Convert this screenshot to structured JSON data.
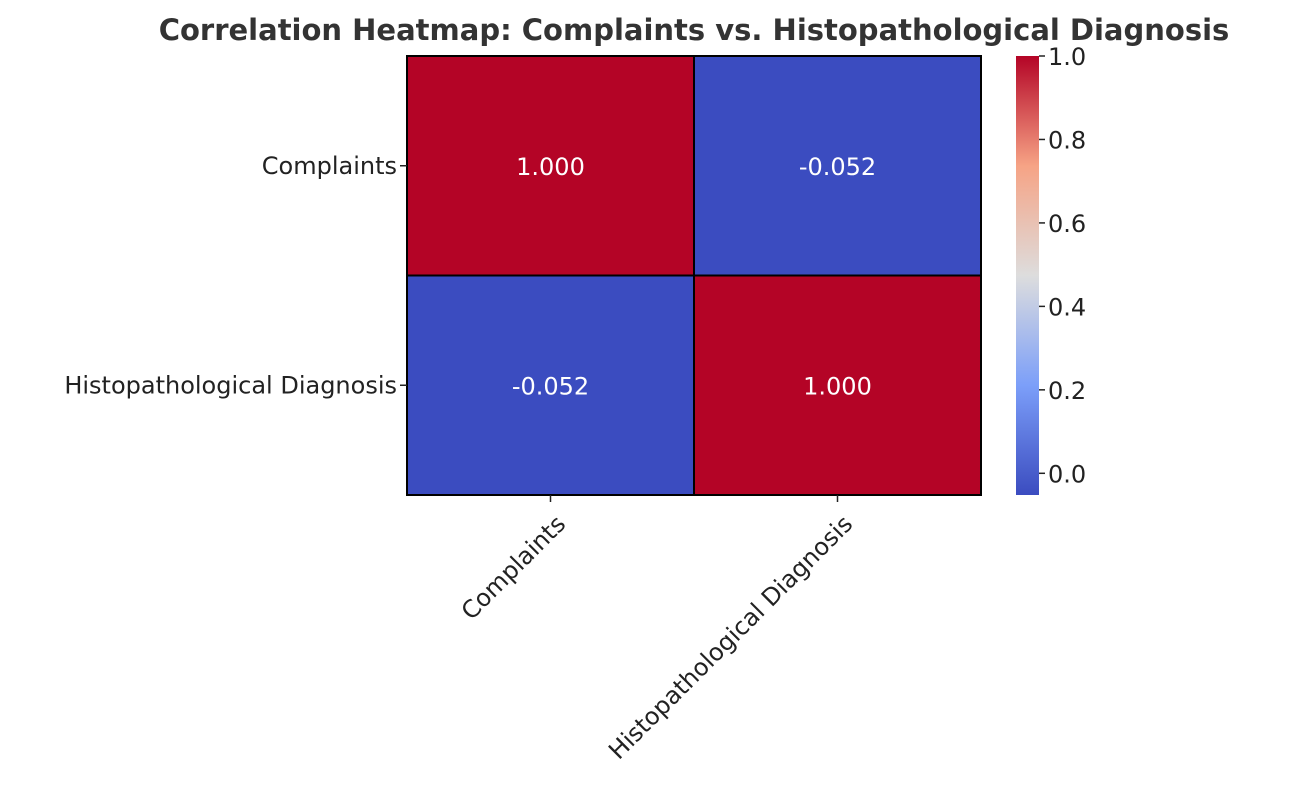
{
  "chart_data": {
    "type": "heatmap",
    "title": "Correlation Heatmap: Complaints vs. Histopathological Diagnosis",
    "rows": [
      "Complaints",
      "Histopathological Diagnosis"
    ],
    "columns": [
      "Complaints",
      "Histopathological Diagnosis"
    ],
    "values": [
      [
        1.0,
        -0.052
      ],
      [
        -0.052,
        1.0
      ]
    ],
    "annotations": [
      [
        "1.000",
        "-0.052"
      ],
      [
        "-0.052",
        "1.000"
      ]
    ],
    "colormap": "coolwarm",
    "colorbar": {
      "vmin": -0.052,
      "vmax": 1.0,
      "ticks": [
        0.0,
        0.2,
        0.4,
        0.6,
        0.8,
        1.0
      ],
      "tick_labels": [
        "0.0",
        "0.2",
        "0.4",
        "0.6",
        "0.8",
        "1.0"
      ]
    },
    "xlabel": "",
    "ylabel": "",
    "colors": {
      "high": "#b40426",
      "low": "#3b4cc0",
      "grid_line": "#000000"
    }
  }
}
